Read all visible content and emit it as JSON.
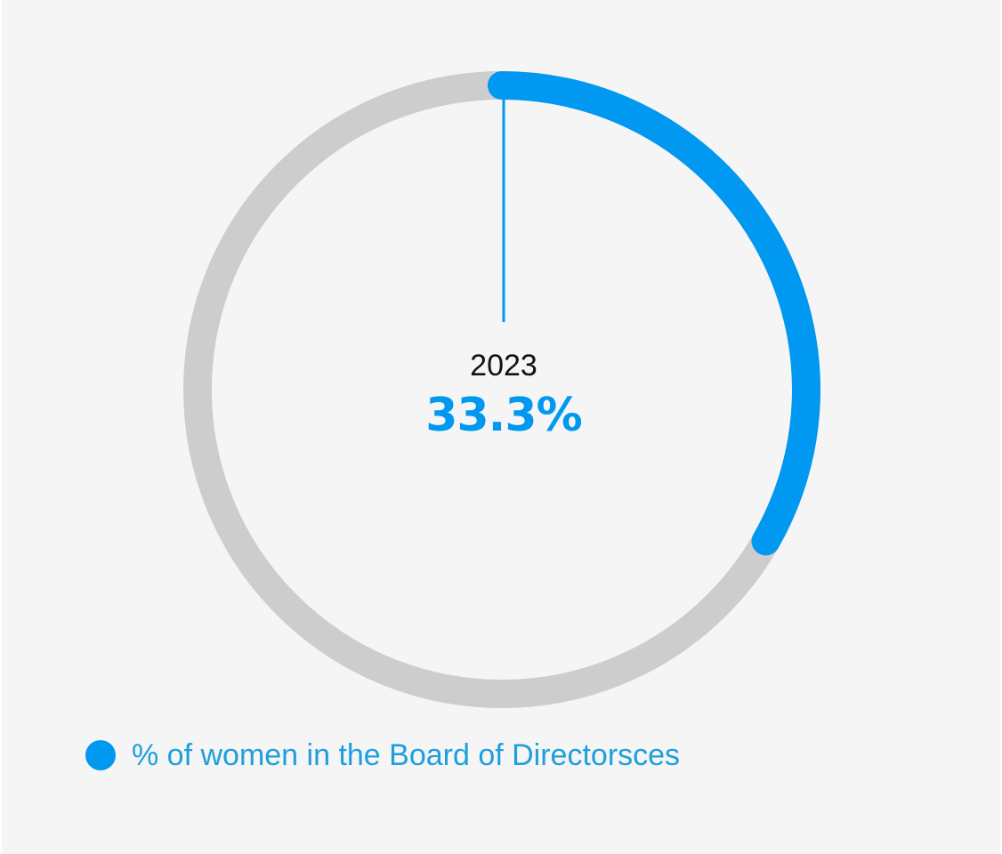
{
  "chart_data": {
    "type": "pie",
    "subtype": "donut-progress",
    "year_label": "2023",
    "value": 33.3,
    "value_label": "33.3%",
    "max": 100,
    "series": [
      {
        "name": "% of women in the Board of Directorsces",
        "values": [
          33.3
        ]
      }
    ],
    "legend_position": "bottom-left"
  },
  "colors": {
    "accent": "#0098f0",
    "track": "#cdcdcd",
    "legend_text": "#1e9fdc",
    "background": "#f5f5f5"
  }
}
